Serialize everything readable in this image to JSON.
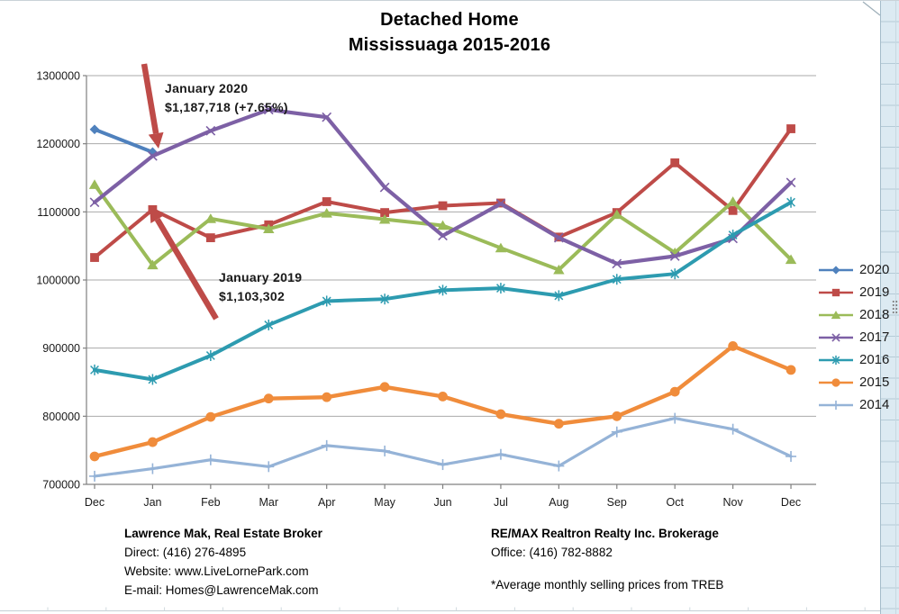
{
  "title": {
    "line1": "Detached Home",
    "line2": "Mississuaga 2015-2016"
  },
  "chart_data": {
    "type": "line",
    "title": "Detached Home Mississuaga 2015-2016",
    "categories": [
      "Dec",
      "Jan",
      "Feb",
      "Mar",
      "Apr",
      "May",
      "Jun",
      "Jul",
      "Aug",
      "Sep",
      "Oct",
      "Nov",
      "Dec"
    ],
    "series": [
      {
        "name": "2020",
        "color": "#4F81BD",
        "marker": "diamond",
        "values": [
          1221000,
          1187718,
          null,
          null,
          null,
          null,
          null,
          null,
          null,
          null,
          null,
          null,
          null
        ]
      },
      {
        "name": "2019",
        "color": "#BE4B48",
        "marker": "square",
        "values": [
          1033000,
          1103302,
          1062000,
          1081000,
          1115000,
          1099000,
          1109000,
          1113000,
          1063000,
          1099000,
          1172000,
          1102000,
          1222000
        ]
      },
      {
        "name": "2018",
        "color": "#9BBB59",
        "marker": "triangle",
        "values": [
          1140000,
          1022000,
          1090000,
          1075000,
          1098000,
          1089000,
          1080000,
          1047000,
          1015000,
          1096000,
          1040000,
          1115000,
          1030000
        ]
      },
      {
        "name": "2017",
        "color": "#7D60A5",
        "marker": "x",
        "values": [
          1114000,
          1182000,
          1219000,
          1250000,
          1239000,
          1136000,
          1065000,
          1112000,
          1062000,
          1024000,
          1035000,
          1061000,
          1143000
        ]
      },
      {
        "name": "2016",
        "color": "#2D9BB0",
        "marker": "asterisk",
        "values": [
          868000,
          854000,
          889000,
          934000,
          969000,
          972000,
          985000,
          988000,
          977000,
          1001000,
          1009000,
          1066000,
          1114000
        ]
      },
      {
        "name": "2015",
        "color": "#F08C3B",
        "marker": "circle",
        "values": [
          741000,
          762000,
          799000,
          826000,
          828000,
          843000,
          829000,
          803000,
          789000,
          800000,
          836000,
          903000,
          868000
        ]
      },
      {
        "name": "2014",
        "color": "#95B3D7",
        "marker": "plus",
        "values": [
          712000,
          723000,
          736000,
          726000,
          757000,
          749000,
          729000,
          744000,
          727000,
          777000,
          797000,
          781000,
          741000
        ]
      }
    ],
    "ylim": [
      700000,
      1300000
    ],
    "ytick_step": 100000,
    "ytick_labels": [
      "700000",
      "800000",
      "900000",
      "1000000",
      "1100000",
      "1200000",
      "1300000"
    ],
    "xlabel": "",
    "ylabel": "",
    "grid": true,
    "legend_position": "right"
  },
  "annotations": [
    {
      "title": "January 2020",
      "value": "$1,187,718 (+7.65%)"
    },
    {
      "title": "January 2019",
      "value": "$1,103,302"
    }
  ],
  "footer": {
    "left": {
      "name": "Lawrence Mak, Real Estate Broker",
      "line1": "Direct:  (416) 276-4895",
      "line2": "Website:  www.LiveLornePark.com",
      "line3": "E-mail:  Homes@LawrenceMak.com"
    },
    "right": {
      "name": "RE/MAX Realtron Realty Inc. Brokerage",
      "line1": "Office: (416) 782-8882",
      "note": "*Average monthly selling prices from TREB"
    }
  },
  "colors": {
    "arrow_red": "#BE4B48",
    "grid": "#A9A9A9",
    "axis": "#808080",
    "label": "#1a1a1a"
  }
}
